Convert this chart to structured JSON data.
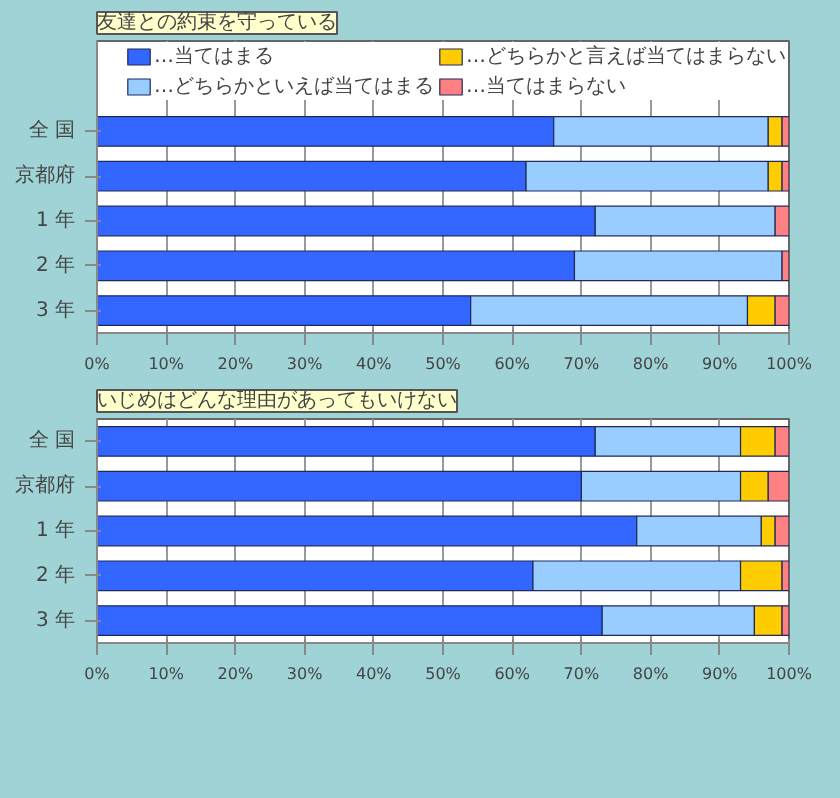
{
  "chart_data": [
    {
      "type": "bar",
      "orientation": "horizontal",
      "stacked": true,
      "title": "友達との約束を守っている",
      "categories": [
        "全 国",
        "京都府",
        "1 年",
        "2 年",
        "3 年"
      ],
      "legend": "top right",
      "grid": "x",
      "xlim": [
        0,
        100
      ],
      "xticks": [
        {
          "value": 0,
          "label": "0%"
        },
        {
          "value": 10,
          "label": "10%"
        },
        {
          "value": 20,
          "label": "20%"
        },
        {
          "value": 30,
          "label": "30%"
        },
        {
          "value": 40,
          "label": "40%"
        },
        {
          "value": 50,
          "label": "50%"
        },
        {
          "value": 60,
          "label": "60%"
        },
        {
          "value": 70,
          "label": "70%"
        },
        {
          "value": 80,
          "label": "80%"
        },
        {
          "value": 90,
          "label": "90%"
        },
        {
          "value": 100,
          "label": "100%"
        }
      ],
      "series": [
        {
          "name": "…当てはまる",
          "color": "#3366ff",
          "values": [
            66,
            62,
            72,
            69,
            54
          ]
        },
        {
          "name": "…どちらかといえば当てはまる",
          "color": "#99ccff",
          "values": [
            31,
            35,
            26,
            30,
            40
          ]
        },
        {
          "name": "…どちらかと言えば当てはまらない",
          "color": "#ffcc00",
          "values": [
            2,
            2,
            0,
            0,
            4
          ]
        },
        {
          "name": "…当てはまらない",
          "color": "#ff8080",
          "values": [
            1,
            1,
            2,
            1,
            2
          ]
        }
      ]
    },
    {
      "type": "bar",
      "orientation": "horizontal",
      "stacked": true,
      "title": "いじめはどんな理由があってもいけない",
      "categories": [
        "全 国",
        "京都府",
        "1 年",
        "2 年",
        "3 年"
      ],
      "grid": "x",
      "xlim": [
        0,
        100
      ],
      "xticks": [
        {
          "value": 0,
          "label": "0%"
        },
        {
          "value": 10,
          "label": "10%"
        },
        {
          "value": 20,
          "label": "20%"
        },
        {
          "value": 30,
          "label": "30%"
        },
        {
          "value": 40,
          "label": "40%"
        },
        {
          "value": 50,
          "label": "50%"
        },
        {
          "value": 60,
          "label": "60%"
        },
        {
          "value": 70,
          "label": "70%"
        },
        {
          "value": 80,
          "label": "80%"
        },
        {
          "value": 90,
          "label": "90%"
        },
        {
          "value": 100,
          "label": "100%"
        }
      ],
      "series": [
        {
          "color": "#3366ff",
          "values": [
            72,
            70,
            78,
            63,
            73
          ]
        },
        {
          "color": "#99ccff",
          "values": [
            21,
            23,
            18,
            30,
            22
          ]
        },
        {
          "color": "#ffcc00",
          "values": [
            5,
            4,
            2,
            6,
            4
          ]
        },
        {
          "color": "#ff8080",
          "values": [
            2,
            3,
            2,
            1,
            1
          ]
        }
      ]
    }
  ]
}
